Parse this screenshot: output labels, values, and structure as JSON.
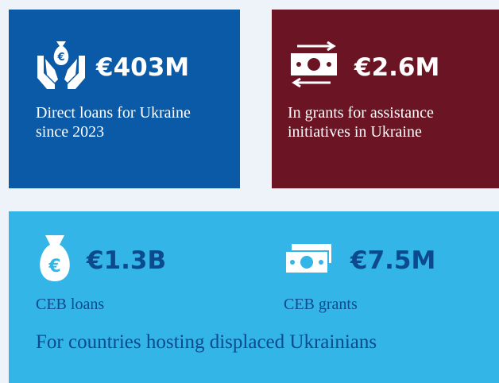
{
  "cards": [
    {
      "figure": "€403M",
      "description": "Direct loans for Ukraine since 2023"
    },
    {
      "figure": "€2.6M",
      "description": "In grants for assistance initiatives in Ukraine"
    }
  ],
  "hosting": {
    "items": [
      {
        "figure": "€1.3B",
        "label": "CEB loans"
      },
      {
        "figure": "€7.5M",
        "label": "CEB grants"
      }
    ],
    "caption": "For countries hosting displaced Ukrainians"
  }
}
